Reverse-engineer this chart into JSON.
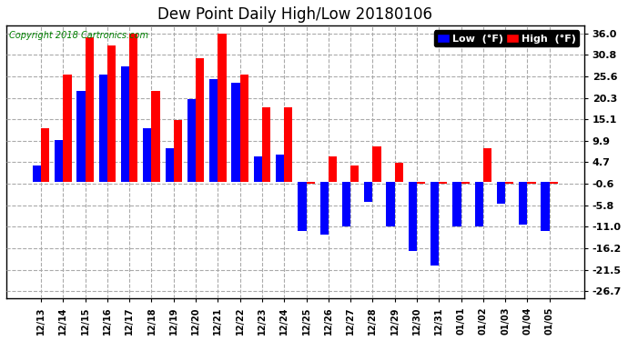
{
  "title": "Dew Point Daily High/Low 20180106",
  "copyright": "Copyright 2018 Cartronics.com",
  "yticks": [
    36.0,
    30.8,
    25.6,
    20.3,
    15.1,
    9.9,
    4.7,
    -0.6,
    -5.8,
    -11.0,
    -16.2,
    -21.5,
    -26.7
  ],
  "ylim": [
    -28.5,
    38.0
  ],
  "background_color": "#ffffff",
  "grid_color": "#aaaaaa",
  "dates": [
    "12/13",
    "12/14",
    "12/15",
    "12/16",
    "12/17",
    "12/18",
    "12/19",
    "12/20",
    "12/21",
    "12/22",
    "12/23",
    "12/24",
    "12/25",
    "12/26",
    "12/27",
    "12/28",
    "12/29",
    "12/30",
    "12/31",
    "01/01",
    "01/02",
    "01/03",
    "01/04",
    "01/05"
  ],
  "high": [
    13.0,
    26.0,
    35.0,
    33.0,
    36.0,
    22.0,
    15.0,
    30.0,
    36.0,
    26.0,
    18.0,
    18.0,
    -0.6,
    6.0,
    4.0,
    8.5,
    4.5,
    -0.6,
    -0.6,
    -0.6,
    8.0,
    -0.6,
    -0.6,
    -0.6
  ],
  "low": [
    4.0,
    10.0,
    22.0,
    26.0,
    28.0,
    13.0,
    8.0,
    20.0,
    25.0,
    24.0,
    6.0,
    6.5,
    -12.0,
    -13.0,
    -11.0,
    -5.0,
    -11.0,
    -17.0,
    -20.5,
    -11.0,
    -11.0,
    -5.5,
    -10.5,
    -12.0
  ],
  "high_color": "#ff0000",
  "low_color": "#0000ff",
  "bar_width": 0.38,
  "legend_low_label": "Low  (°F)",
  "legend_high_label": "High  (°F)"
}
